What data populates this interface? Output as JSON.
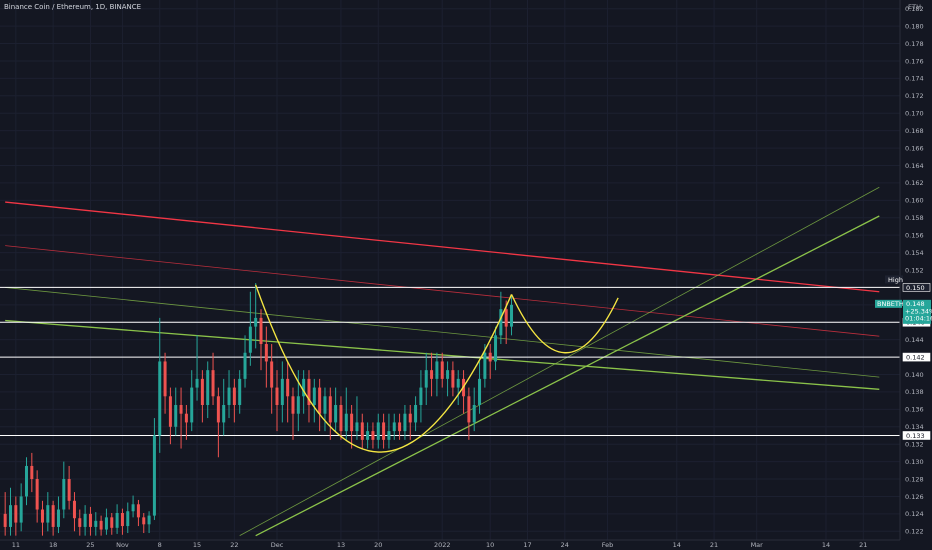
{
  "header": {
    "symbol_title": "Binance Coin / Ethereum, 1D, BINANCE",
    "currency": "ETH"
  },
  "y_axis": {
    "min": 0.121,
    "max": 0.183,
    "ticks": [
      "0.182",
      "0.180",
      "0.178",
      "0.176",
      "0.174",
      "0.172",
      "0.170",
      "0.168",
      "0.166",
      "0.164",
      "0.162",
      "0.160",
      "0.158",
      "0.156",
      "0.154",
      "0.152",
      "0.150",
      "0.148",
      "0.146",
      "0.144",
      "0.142",
      "0.140",
      "0.138",
      "0.136",
      "0.134",
      "0.132",
      "0.130",
      "0.128",
      "0.126",
      "0.124",
      "0.122"
    ]
  },
  "x_axis": {
    "labels": [
      {
        "text": "11",
        "day": -49
      },
      {
        "text": "18",
        "day": -42
      },
      {
        "text": "25",
        "day": -35
      },
      {
        "text": "Nov",
        "day": -29
      },
      {
        "text": "8",
        "day": -22
      },
      {
        "text": "15",
        "day": -15
      },
      {
        "text": "22",
        "day": -8
      },
      {
        "text": "Dec",
        "day": 0
      },
      {
        "text": "13",
        "day": 12
      },
      {
        "text": "20",
        "day": 19
      },
      {
        "text": "2022",
        "day": 31
      },
      {
        "text": "10",
        "day": 40
      },
      {
        "text": "17",
        "day": 47
      },
      {
        "text": "24",
        "day": 54
      },
      {
        "text": "Feb",
        "day": 62
      },
      {
        "text": "14",
        "day": 75
      },
      {
        "text": "21",
        "day": 82
      },
      {
        "text": "Mar",
        "day": 90
      },
      {
        "text": "14",
        "day": 103
      },
      {
        "text": "21",
        "day": 110
      }
    ]
  },
  "price_tags": [
    {
      "label": "High",
      "value": "0.150",
      "color": "#ffffff",
      "bg": "#1e2230"
    },
    {
      "label": "",
      "value": "0.146",
      "color": "#141722",
      "bg": "#ffffff"
    },
    {
      "label": "",
      "value": "0.142",
      "color": "#141722",
      "bg": "#ffffff"
    },
    {
      "label": "",
      "value": "0.133",
      "color": "#141722",
      "bg": "#ffffff"
    }
  ],
  "current_price": {
    "ticker": "BNBETH",
    "price": "0.148",
    "change": "+25.34%",
    "countdown": "01:04:16",
    "bg": "#26a69a"
  },
  "colors": {
    "up": "#26a69a",
    "down": "#ef5350",
    "cup_handle": "#f5e642",
    "red_line": "#f23645",
    "green_line": "#8bc34a",
    "horizontal": "#ffffff"
  },
  "chart_data": {
    "type": "candlestick",
    "title": "Binance Coin / Ethereum, 1D, BINANCE",
    "x_unit": "days relative to Dec 1, 2021",
    "y_unit": "ETH",
    "ylim": [
      0.121,
      0.183
    ],
    "candles": [
      {
        "day": -51,
        "open": 0.124,
        "close": 0.1225,
        "high": 0.1265,
        "low": 0.1215
      },
      {
        "day": -50,
        "open": 0.1225,
        "close": 0.125,
        "high": 0.127,
        "low": 0.1215
      },
      {
        "day": -49,
        "open": 0.125,
        "close": 0.123,
        "high": 0.126,
        "low": 0.1215
      },
      {
        "day": -48,
        "open": 0.123,
        "close": 0.126,
        "high": 0.1275,
        "low": 0.122
      },
      {
        "day": -47,
        "open": 0.126,
        "close": 0.1295,
        "high": 0.1305,
        "low": 0.125
      },
      {
        "day": -46,
        "open": 0.1295,
        "close": 0.128,
        "high": 0.131,
        "low": 0.1265
      },
      {
        "day": -45,
        "open": 0.128,
        "close": 0.1245,
        "high": 0.129,
        "low": 0.123
      },
      {
        "day": -44,
        "open": 0.1245,
        "close": 0.123,
        "high": 0.1255,
        "low": 0.1215
      },
      {
        "day": -43,
        "open": 0.123,
        "close": 0.125,
        "high": 0.1265,
        "low": 0.122
      },
      {
        "day": -42,
        "open": 0.125,
        "close": 0.1225,
        "high": 0.1255,
        "low": 0.1215
      },
      {
        "day": -41,
        "open": 0.1225,
        "close": 0.1245,
        "high": 0.126,
        "low": 0.1218
      },
      {
        "day": -40,
        "open": 0.1245,
        "close": 0.128,
        "high": 0.13,
        "low": 0.1235
      },
      {
        "day": -39,
        "open": 0.128,
        "close": 0.1255,
        "high": 0.1295,
        "low": 0.1245
      },
      {
        "day": -38,
        "open": 0.1255,
        "close": 0.1235,
        "high": 0.1265,
        "low": 0.122
      },
      {
        "day": -37,
        "open": 0.1235,
        "close": 0.1225,
        "high": 0.1245,
        "low": 0.1215
      },
      {
        "day": -36,
        "open": 0.1225,
        "close": 0.124,
        "high": 0.125,
        "low": 0.1215
      },
      {
        "day": -35,
        "open": 0.124,
        "close": 0.1225,
        "high": 0.1248,
        "low": 0.1215
      },
      {
        "day": -34,
        "open": 0.1225,
        "close": 0.1232,
        "high": 0.1242,
        "low": 0.1215
      },
      {
        "day": -33,
        "open": 0.1232,
        "close": 0.1222,
        "high": 0.1238,
        "low": 0.1215
      },
      {
        "day": -32,
        "open": 0.1222,
        "close": 0.1236,
        "high": 0.1246,
        "low": 0.1216
      },
      {
        "day": -31,
        "open": 0.1236,
        "close": 0.1224,
        "high": 0.1241,
        "low": 0.1216
      },
      {
        "day": -30,
        "open": 0.1224,
        "close": 0.1241,
        "high": 0.1251,
        "low": 0.1217
      },
      {
        "day": -29,
        "open": 0.1241,
        "close": 0.1226,
        "high": 0.1246,
        "low": 0.1216
      },
      {
        "day": -28,
        "open": 0.1226,
        "close": 0.1243,
        "high": 0.1253,
        "low": 0.1218
      },
      {
        "day": -27,
        "open": 0.1243,
        "close": 0.1251,
        "high": 0.1261,
        "low": 0.1236
      },
      {
        "day": -26,
        "open": 0.1251,
        "close": 0.1236,
        "high": 0.1256,
        "low": 0.1226
      },
      {
        "day": -25,
        "open": 0.1236,
        "close": 0.1228,
        "high": 0.1241,
        "low": 0.1218
      },
      {
        "day": -24,
        "open": 0.1228,
        "close": 0.1238,
        "high": 0.1243,
        "low": 0.1218
      },
      {
        "day": -23,
        "open": 0.1238,
        "close": 0.133,
        "high": 0.135,
        "low": 0.1233
      },
      {
        "day": -22,
        "open": 0.133,
        "close": 0.1415,
        "high": 0.1465,
        "low": 0.131
      },
      {
        "day": -21,
        "open": 0.1415,
        "close": 0.1375,
        "high": 0.1425,
        "low": 0.1355
      },
      {
        "day": -20,
        "open": 0.1375,
        "close": 0.134,
        "high": 0.1385,
        "low": 0.132
      },
      {
        "day": -19,
        "open": 0.134,
        "close": 0.1365,
        "high": 0.1385,
        "low": 0.133
      },
      {
        "day": -18,
        "open": 0.1365,
        "close": 0.1355,
        "high": 0.1385,
        "low": 0.1315
      },
      {
        "day": -17,
        "open": 0.1355,
        "close": 0.1345,
        "high": 0.1365,
        "low": 0.1325
      },
      {
        "day": -16,
        "open": 0.1345,
        "close": 0.1385,
        "high": 0.1405,
        "low": 0.1335
      },
      {
        "day": -15,
        "open": 0.1385,
        "close": 0.1395,
        "high": 0.1445,
        "low": 0.137
      },
      {
        "day": -14,
        "open": 0.1395,
        "close": 0.1365,
        "high": 0.1405,
        "low": 0.1345
      },
      {
        "day": -13,
        "open": 0.1365,
        "close": 0.1405,
        "high": 0.1415,
        "low": 0.135
      },
      {
        "day": -12,
        "open": 0.1405,
        "close": 0.1375,
        "high": 0.1425,
        "low": 0.1365
      },
      {
        "day": -11,
        "open": 0.1375,
        "close": 0.1345,
        "high": 0.1385,
        "low": 0.1305
      },
      {
        "day": -10,
        "open": 0.1345,
        "close": 0.1365,
        "high": 0.1395,
        "low": 0.133
      },
      {
        "day": -9,
        "open": 0.1365,
        "close": 0.1385,
        "high": 0.1405,
        "low": 0.135
      },
      {
        "day": -8,
        "open": 0.1385,
        "close": 0.1365,
        "high": 0.1395,
        "low": 0.1345
      },
      {
        "day": -7,
        "open": 0.1365,
        "close": 0.1395,
        "high": 0.1405,
        "low": 0.1355
      },
      {
        "day": -6,
        "open": 0.1395,
        "close": 0.1425,
        "high": 0.1445,
        "low": 0.1385
      },
      {
        "day": -5,
        "open": 0.1425,
        "close": 0.1455,
        "high": 0.1495,
        "low": 0.141
      },
      {
        "day": -4,
        "open": 0.1455,
        "close": 0.1465,
        "high": 0.1505,
        "low": 0.143
      },
      {
        "day": -3,
        "open": 0.1465,
        "close": 0.1435,
        "high": 0.1475,
        "low": 0.1405
      },
      {
        "day": -2,
        "open": 0.1435,
        "close": 0.1415,
        "high": 0.1455,
        "low": 0.1385
      },
      {
        "day": -1,
        "open": 0.1415,
        "close": 0.1385,
        "high": 0.1435,
        "low": 0.1355
      },
      {
        "day": 0,
        "open": 0.1385,
        "close": 0.1365,
        "high": 0.1405,
        "low": 0.1335
      },
      {
        "day": 1,
        "open": 0.1365,
        "close": 0.1395,
        "high": 0.1415,
        "low": 0.1345
      },
      {
        "day": 2,
        "open": 0.1395,
        "close": 0.1375,
        "high": 0.1415,
        "low": 0.1345
      },
      {
        "day": 3,
        "open": 0.1375,
        "close": 0.1355,
        "high": 0.1385,
        "low": 0.1325
      },
      {
        "day": 4,
        "open": 0.1355,
        "close": 0.1375,
        "high": 0.1405,
        "low": 0.1335
      },
      {
        "day": 5,
        "open": 0.1375,
        "close": 0.1395,
        "high": 0.1405,
        "low": 0.1355
      },
      {
        "day": 6,
        "open": 0.1395,
        "close": 0.1365,
        "high": 0.1405,
        "low": 0.1345
      },
      {
        "day": 7,
        "open": 0.1365,
        "close": 0.1385,
        "high": 0.1395,
        "low": 0.1345
      },
      {
        "day": 8,
        "open": 0.1385,
        "close": 0.1355,
        "high": 0.1395,
        "low": 0.1335
      },
      {
        "day": 9,
        "open": 0.1355,
        "close": 0.1375,
        "high": 0.1385,
        "low": 0.1335
      },
      {
        "day": 10,
        "open": 0.1375,
        "close": 0.1345,
        "high": 0.1385,
        "low": 0.1325
      },
      {
        "day": 11,
        "open": 0.1345,
        "close": 0.1365,
        "high": 0.1385,
        "low": 0.1335
      },
      {
        "day": 12,
        "open": 0.1365,
        "close": 0.1335,
        "high": 0.1375,
        "low": 0.1325
      },
      {
        "day": 13,
        "open": 0.1335,
        "close": 0.1355,
        "high": 0.1385,
        "low": 0.1325
      },
      {
        "day": 14,
        "open": 0.1355,
        "close": 0.1335,
        "high": 0.1365,
        "low": 0.1315
      },
      {
        "day": 15,
        "open": 0.1335,
        "close": 0.1345,
        "high": 0.1375,
        "low": 0.1325
      },
      {
        "day": 16,
        "open": 0.1345,
        "close": 0.1325,
        "high": 0.1355,
        "low": 0.1315
      },
      {
        "day": 17,
        "open": 0.1325,
        "close": 0.1335,
        "high": 0.1345,
        "low": 0.1315
      },
      {
        "day": 18,
        "open": 0.1335,
        "close": 0.1325,
        "high": 0.1345,
        "low": 0.1315
      },
      {
        "day": 19,
        "open": 0.1325,
        "close": 0.1345,
        "high": 0.1355,
        "low": 0.1315
      },
      {
        "day": 20,
        "open": 0.1345,
        "close": 0.1325,
        "high": 0.1355,
        "low": 0.1315
      },
      {
        "day": 21,
        "open": 0.1325,
        "close": 0.1335,
        "high": 0.1355,
        "low": 0.1315
      },
      {
        "day": 22,
        "open": 0.1335,
        "close": 0.1345,
        "high": 0.1355,
        "low": 0.1325
      },
      {
        "day": 23,
        "open": 0.1345,
        "close": 0.1335,
        "high": 0.1355,
        "low": 0.1325
      },
      {
        "day": 24,
        "open": 0.1335,
        "close": 0.1355,
        "high": 0.1365,
        "low": 0.1325
      },
      {
        "day": 25,
        "open": 0.1355,
        "close": 0.1345,
        "high": 0.1365,
        "low": 0.1325
      },
      {
        "day": 26,
        "open": 0.1345,
        "close": 0.1365,
        "high": 0.1375,
        "low": 0.1335
      },
      {
        "day": 27,
        "open": 0.1365,
        "close": 0.1385,
        "high": 0.1405,
        "low": 0.1345
      },
      {
        "day": 28,
        "open": 0.1385,
        "close": 0.1405,
        "high": 0.1425,
        "low": 0.1365
      },
      {
        "day": 29,
        "open": 0.1405,
        "close": 0.1395,
        "high": 0.1425,
        "low": 0.1375
      },
      {
        "day": 30,
        "open": 0.1395,
        "close": 0.1415,
        "high": 0.1425,
        "low": 0.1375
      },
      {
        "day": 31,
        "open": 0.1415,
        "close": 0.1395,
        "high": 0.1425,
        "low": 0.1385
      },
      {
        "day": 32,
        "open": 0.1395,
        "close": 0.1405,
        "high": 0.1415,
        "low": 0.1375
      },
      {
        "day": 33,
        "open": 0.1405,
        "close": 0.1385,
        "high": 0.1415,
        "low": 0.1375
      },
      {
        "day": 34,
        "open": 0.1385,
        "close": 0.1395,
        "high": 0.1405,
        "low": 0.1365
      },
      {
        "day": 35,
        "open": 0.1395,
        "close": 0.1375,
        "high": 0.1405,
        "low": 0.1355
      },
      {
        "day": 36,
        "open": 0.1375,
        "close": 0.1345,
        "high": 0.1385,
        "low": 0.1325
      },
      {
        "day": 37,
        "open": 0.1345,
        "close": 0.1365,
        "high": 0.1385,
        "low": 0.1335
      },
      {
        "day": 38,
        "open": 0.1365,
        "close": 0.1395,
        "high": 0.1415,
        "low": 0.1355
      },
      {
        "day": 39,
        "open": 0.1395,
        "close": 0.1425,
        "high": 0.1435,
        "low": 0.1385
      },
      {
        "day": 40,
        "open": 0.1425,
        "close": 0.1415,
        "high": 0.1435,
        "low": 0.1395
      },
      {
        "day": 41,
        "open": 0.1415,
        "close": 0.1445,
        "high": 0.1455,
        "low": 0.1405
      },
      {
        "day": 42,
        "open": 0.1445,
        "close": 0.1475,
        "high": 0.1495,
        "low": 0.1435
      },
      {
        "day": 43,
        "open": 0.1475,
        "close": 0.1455,
        "high": 0.1485,
        "low": 0.1435
      },
      {
        "day": 44,
        "open": 0.1455,
        "close": 0.148,
        "high": 0.149,
        "low": 0.1445
      }
    ],
    "horizontal_levels": [
      0.15,
      0.146,
      0.142,
      0.133
    ],
    "trendlines": [
      {
        "color": "red",
        "points": [
          [
            -51,
            0.1598
          ],
          [
            113,
            0.1495
          ]
        ]
      },
      {
        "color": "red",
        "points": [
          [
            -51,
            0.1548
          ],
          [
            113,
            0.1444
          ]
        ]
      },
      {
        "color": "green",
        "points": [
          [
            -51,
            0.1462
          ],
          [
            113,
            0.1383
          ]
        ]
      },
      {
        "color": "green",
        "points": [
          [
            -51,
            0.15
          ],
          [
            113,
            0.1397
          ]
        ]
      },
      {
        "color": "green",
        "points": [
          [
            -4,
            0.1215
          ],
          [
            113,
            0.1582
          ]
        ]
      },
      {
        "color": "green",
        "points": [
          [
            -7,
            0.1215
          ],
          [
            113,
            0.1615
          ]
        ]
      }
    ],
    "cup_and_handle": {
      "cup": [
        [
          -4,
          0.1503
        ],
        [
          19,
          0.1311
        ],
        [
          44,
          0.1492
        ]
      ],
      "handle": [
        [
          44,
          0.1492
        ],
        [
          54,
          0.1425
        ],
        [
          64,
          0.1488
        ]
      ]
    }
  }
}
